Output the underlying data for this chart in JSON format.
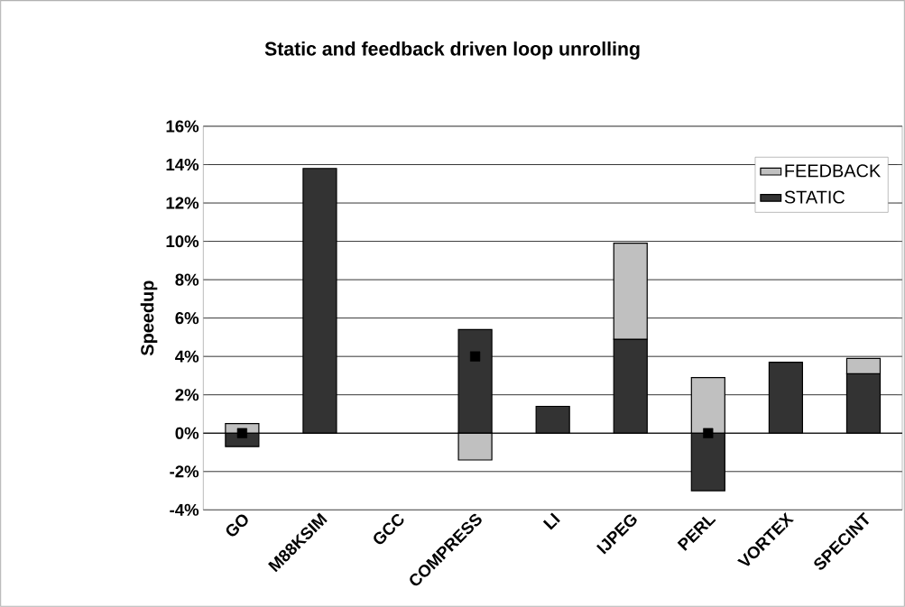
{
  "chart_data": {
    "type": "bar",
    "title": "Static and feedback driven loop unrolling",
    "ylabel": "Speedup",
    "categories": [
      "GO",
      "M88KSIM",
      "GCC",
      "COMPRESS",
      "LI",
      "IJPEG",
      "PERL",
      "VORTEX",
      "SPECINT"
    ],
    "stacked": true,
    "series": [
      {
        "name": "STATIC",
        "color": "#333333",
        "values": [
          -0.7,
          13.8,
          0,
          5.4,
          1.4,
          4.9,
          -3.0,
          3.7,
          3.1
        ]
      },
      {
        "name": "FEEDBACK",
        "color": "#c0c0c0",
        "values": [
          0.5,
          0,
          0,
          -1.4,
          0,
          5.0,
          2.9,
          0,
          0.8
        ]
      },
      {
        "type": "scatter",
        "color": "#000000",
        "values": [
          0,
          null,
          null,
          4.0,
          null,
          null,
          0,
          null,
          null
        ]
      }
    ],
    "ylim": [
      -4,
      16
    ],
    "yticks": [
      {
        "value": -4,
        "label": "-4%"
      },
      {
        "value": -2,
        "label": "-2%"
      },
      {
        "value": 0,
        "label": "0%"
      },
      {
        "value": 2,
        "label": "2%"
      },
      {
        "value": 4,
        "label": "4%"
      },
      {
        "value": 6,
        "label": "6%"
      },
      {
        "value": 8,
        "label": "8%"
      },
      {
        "value": 10,
        "label": "10%"
      },
      {
        "value": 12,
        "label": "12%"
      },
      {
        "value": 14,
        "label": "14%"
      },
      {
        "value": 16,
        "label": "16%"
      }
    ],
    "grid": "y",
    "legend": "top right",
    "marker": "square"
  }
}
